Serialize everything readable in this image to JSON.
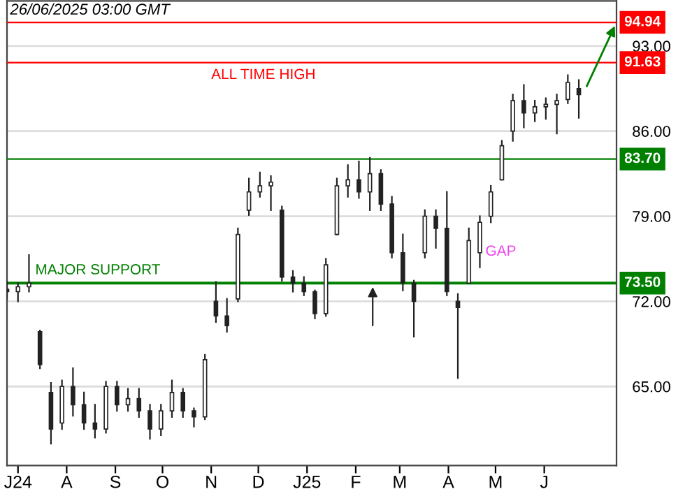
{
  "chart_data": {
    "type": "candlestick",
    "x": [
      "2024-06-24",
      "2024-07-01",
      "2024-07-08",
      "2024-07-15",
      "2024-07-22",
      "2024-07-29",
      "2024-08-05",
      "2024-08-12",
      "2024-08-19",
      "2024-08-26",
      "2024-09-02",
      "2024-09-09",
      "2024-09-16",
      "2024-09-23",
      "2024-09-30",
      "2024-10-07",
      "2024-10-14",
      "2024-10-21",
      "2024-10-28",
      "2024-11-04",
      "2024-11-11",
      "2024-11-18",
      "2024-11-25",
      "2024-12-02",
      "2024-12-09",
      "2024-12-16",
      "2024-12-23",
      "2024-12-30",
      "2025-01-06",
      "2025-01-13",
      "2025-01-20",
      "2025-01-27",
      "2025-02-03",
      "2025-02-10",
      "2025-02-17",
      "2025-02-24",
      "2025-03-03",
      "2025-03-10",
      "2025-03-17",
      "2025-03-24",
      "2025-03-31",
      "2025-04-07",
      "2025-04-14",
      "2025-04-21",
      "2025-04-28",
      "2025-05-05",
      "2025-05-12",
      "2025-05-19",
      "2025-05-26",
      "2025-06-02",
      "2025-06-09",
      "2025-06-16",
      "2025-06-23"
    ],
    "ohlc": [
      [
        73.0,
        73.6,
        72.2,
        72.8
      ],
      [
        72.8,
        73.5,
        72.0,
        73.2
      ],
      [
        73.2,
        75.8,
        72.8,
        73.5
      ],
      [
        69.5,
        69.6,
        66.5,
        66.8
      ],
      [
        64.5,
        65.3,
        60.3,
        61.5
      ],
      [
        62.0,
        65.5,
        61.5,
        65.0
      ],
      [
        65.0,
        66.5,
        62.6,
        63.5
      ],
      [
        63.5,
        64.5,
        61.5,
        62.0
      ],
      [
        62.0,
        63.5,
        60.8,
        61.5
      ],
      [
        61.5,
        65.4,
        61.2,
        65.0
      ],
      [
        65.0,
        65.4,
        63.0,
        63.5
      ],
      [
        63.5,
        64.8,
        63.0,
        64.0
      ],
      [
        64.0,
        64.8,
        62.5,
        63.0
      ],
      [
        63.0,
        63.5,
        60.7,
        61.5
      ],
      [
        61.5,
        63.5,
        61.0,
        63.0
      ],
      [
        63.0,
        65.5,
        62.5,
        64.5
      ],
      [
        64.5,
        64.8,
        62.5,
        63.0
      ],
      [
        63.0,
        63.2,
        61.7,
        62.5
      ],
      [
        62.5,
        67.6,
        62.3,
        67.2
      ],
      [
        72.0,
        73.6,
        70.3,
        70.8
      ],
      [
        70.8,
        72.2,
        69.5,
        70.0
      ],
      [
        72.2,
        78.0,
        72.0,
        77.5
      ],
      [
        79.5,
        82.1,
        79.1,
        81.0
      ],
      [
        81.0,
        82.6,
        80.6,
        81.5
      ],
      [
        81.5,
        82.3,
        79.5,
        81.8
      ],
      [
        79.5,
        79.8,
        73.7,
        74.0
      ],
      [
        74.0,
        74.5,
        72.8,
        73.5
      ],
      [
        73.5,
        74.0,
        72.5,
        72.8
      ],
      [
        72.8,
        72.9,
        70.6,
        71.0
      ],
      [
        71.0,
        75.5,
        70.8,
        75.0
      ],
      [
        77.5,
        82.1,
        77.5,
        81.5
      ],
      [
        81.5,
        83.2,
        80.6,
        82.0
      ],
      [
        82.0,
        83.5,
        80.5,
        81.0
      ],
      [
        81.0,
        83.8,
        79.5,
        82.5
      ],
      [
        82.5,
        82.8,
        79.5,
        80.0
      ],
      [
        80.0,
        80.6,
        75.6,
        76.0
      ],
      [
        76.0,
        77.5,
        72.9,
        73.5
      ],
      [
        73.5,
        73.7,
        69.1,
        72.0
      ],
      [
        76.0,
        79.5,
        75.6,
        79.0
      ],
      [
        79.0,
        79.5,
        76.4,
        78.0
      ],
      [
        78.0,
        81.0,
        72.5,
        72.8
      ],
      [
        72.0,
        72.6,
        65.7,
        71.5
      ],
      [
        73.5,
        78.0,
        73.5,
        77.0
      ],
      [
        76.0,
        79.0,
        74.8,
        78.5
      ],
      [
        79.0,
        81.5,
        78.5,
        81.0
      ],
      [
        82.0,
        85.2,
        82.0,
        84.8
      ],
      [
        86.0,
        89.0,
        85.2,
        88.5
      ],
      [
        88.5,
        89.8,
        86.3,
        87.5
      ],
      [
        87.5,
        88.5,
        86.8,
        88.0
      ],
      [
        88.0,
        88.7,
        87.0,
        88.2
      ],
      [
        88.2,
        89.0,
        85.8,
        88.5
      ],
      [
        88.6,
        90.6,
        88.3,
        90.0
      ],
      [
        89.5,
        90.2,
        87.1,
        89.0
      ]
    ],
    "color": "#222222",
    "xlim": [
      "2024-06-24",
      "2025-07-17"
    ],
    "xticks": [
      {
        "value": "2024-07-01",
        "label": "J24"
      },
      {
        "value": "2024-08-01",
        "label": "A"
      },
      {
        "value": "2024-09-01",
        "label": "S"
      },
      {
        "value": "2024-10-01",
        "label": "O"
      },
      {
        "value": "2024-11-01",
        "label": "N"
      },
      {
        "value": "2024-12-01",
        "label": "D"
      },
      {
        "value": "2025-01-01",
        "label": "J25"
      },
      {
        "value": "2025-02-01",
        "label": "F"
      },
      {
        "value": "2025-03-01",
        "label": "M"
      },
      {
        "value": "2025-04-01",
        "label": "A"
      },
      {
        "value": "2025-05-01",
        "label": "M"
      },
      {
        "value": "2025-06-01",
        "label": "J"
      }
    ],
    "ylim": [
      58.5,
      96.7
    ],
    "yticks": [
      {
        "value": 65,
        "label": "65.00"
      },
      {
        "value": 72,
        "label": "72.00"
      },
      {
        "value": 79,
        "label": "79.00"
      },
      {
        "value": 86,
        "label": "86.00"
      },
      {
        "value": 93,
        "label": "93.00"
      }
    ],
    "grid": "y",
    "ref_lines": [
      {
        "axis": "y",
        "value": 94.94,
        "label": "94.94",
        "color": "#ff0000"
      },
      {
        "axis": "y",
        "value": 91.63,
        "label": "91.63",
        "color": "#ff0000"
      },
      {
        "axis": "y",
        "value": 83.7,
        "label": "83.70",
        "color": "#008000"
      },
      {
        "axis": "y",
        "value": 73.5,
        "label": "73.50",
        "color": "#008000"
      }
    ],
    "annotations": [
      "26/06/2025 03:00 GMT",
      {
        "text": "ALL TIME HIGH",
        "x": "2024-11-01",
        "y": 91.63
      },
      {
        "text": "MAJOR SUPPORT",
        "x": "2024-07-12",
        "y": 73.5
      },
      "GAP"
    ]
  }
}
